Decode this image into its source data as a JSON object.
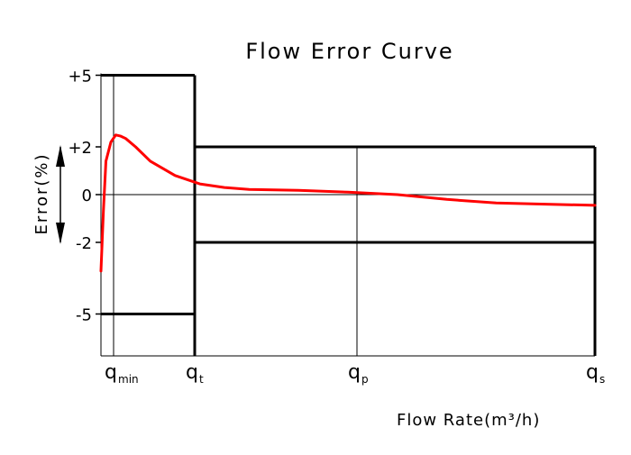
{
  "chart_data": {
    "type": "line",
    "title": "Flow Error Curve",
    "xlabel": "Flow Rate(m³/h)",
    "ylabel": "Error(%)",
    "ylim": [
      -7,
      7.5
    ],
    "y_ticks": [
      {
        "value": 5,
        "label": "+5"
      },
      {
        "value": 2,
        "label": "+2"
      },
      {
        "value": 0,
        "label": "0"
      },
      {
        "value": -2,
        "label": "-2"
      },
      {
        "value": -5,
        "label": "-5"
      }
    ],
    "x_ticks": [
      {
        "main": "q",
        "sub": "min"
      },
      {
        "main": "q",
        "sub": "t"
      },
      {
        "main": "q",
        "sub": "p"
      },
      {
        "main": "q",
        "sub": "s"
      }
    ],
    "tolerance_limits": {
      "low_flow_zone": [
        -5,
        5
      ],
      "high_flow_zone": [
        -2,
        2
      ]
    },
    "series": [
      {
        "color": "#ff0000",
        "x": [
          0.0,
          0.005,
          0.01,
          0.02,
          0.03,
          0.04,
          0.05,
          0.07,
          0.1,
          0.15,
          0.2,
          0.25,
          0.3,
          0.35,
          0.4,
          0.5,
          0.6,
          0.7,
          0.8,
          0.9,
          1.0
        ],
        "y": [
          -3.2,
          -0.7,
          1.4,
          2.2,
          2.5,
          2.45,
          2.35,
          2.0,
          1.4,
          0.8,
          0.45,
          0.3,
          0.22,
          0.2,
          0.18,
          0.1,
          0.0,
          -0.2,
          -0.35,
          -0.4,
          -0.45
        ]
      }
    ]
  }
}
